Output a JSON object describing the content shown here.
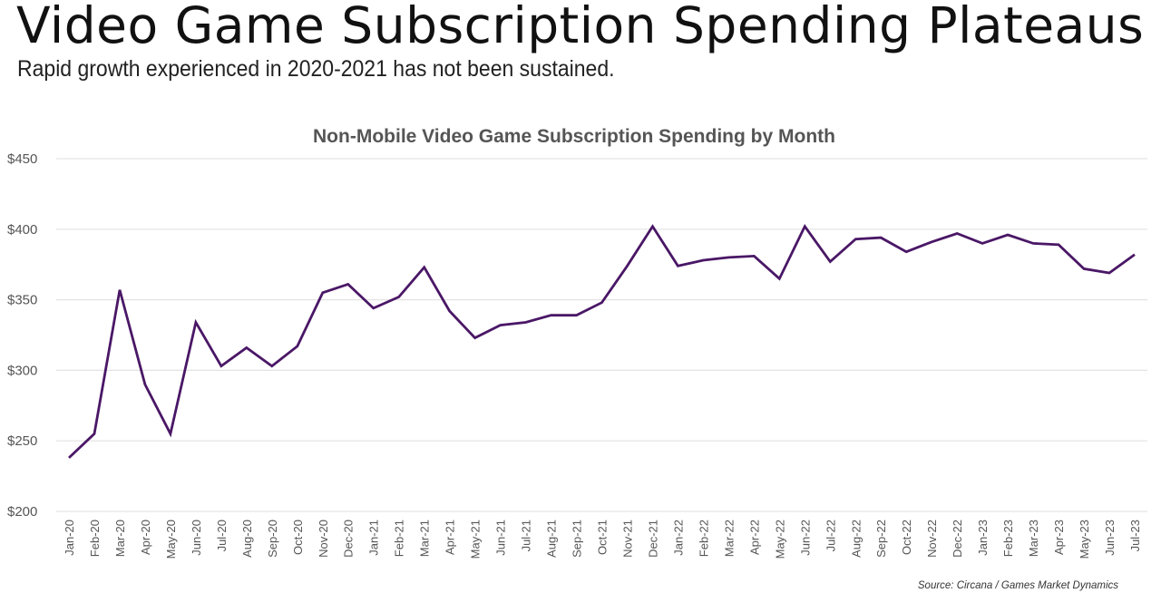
{
  "header": {
    "title": "Video Game Subscription Spending Plateaus",
    "subtitle": "Rapid growth experienced in 2020-2021 has not been sustained."
  },
  "chart_data": {
    "type": "line",
    "title": "Non-Mobile Video Game Subscription Spending by Month",
    "xlabel": "",
    "ylabel": "",
    "ylim": [
      200,
      450
    ],
    "y_ticks": [
      200,
      250,
      300,
      350,
      400,
      450
    ],
    "y_tick_labels": [
      "$200",
      "$250",
      "$300",
      "$350",
      "$400",
      "$450"
    ],
    "grid": true,
    "legend": "none",
    "line_color": "#4a1766",
    "categories": [
      "Jan-20",
      "Feb-20",
      "Mar-20",
      "Apr-20",
      "May-20",
      "Jun-20",
      "Jul-20",
      "Aug-20",
      "Sep-20",
      "Oct-20",
      "Nov-20",
      "Dec-20",
      "Jan-21",
      "Feb-21",
      "Mar-21",
      "Apr-21",
      "May-21",
      "Jun-21",
      "Jul-21",
      "Aug-21",
      "Sep-21",
      "Oct-21",
      "Nov-21",
      "Dec-21",
      "Jan-22",
      "Feb-22",
      "Mar-22",
      "Apr-22",
      "May-22",
      "Jun-22",
      "Jul-22",
      "Aug-22",
      "Sep-22",
      "Oct-22",
      "Nov-22",
      "Dec-22",
      "Jan-23",
      "Feb-23",
      "Mar-23",
      "Apr-23",
      "May-23",
      "Jun-23",
      "Jul-23"
    ],
    "series": [
      {
        "name": "Non-Mobile Video Game Subscription Spending",
        "values": [
          238,
          255,
          357,
          290,
          255,
          334,
          303,
          316,
          303,
          317,
          355,
          361,
          344,
          352,
          373,
          342,
          323,
          332,
          334,
          339,
          339,
          348,
          374,
          402,
          374,
          378,
          380,
          381,
          365,
          402,
          377,
          393,
          394,
          384,
          391,
          397,
          390,
          396,
          390,
          389,
          372,
          369,
          382
        ]
      }
    ],
    "source": "Source: Circana / Games Market Dynamics"
  }
}
